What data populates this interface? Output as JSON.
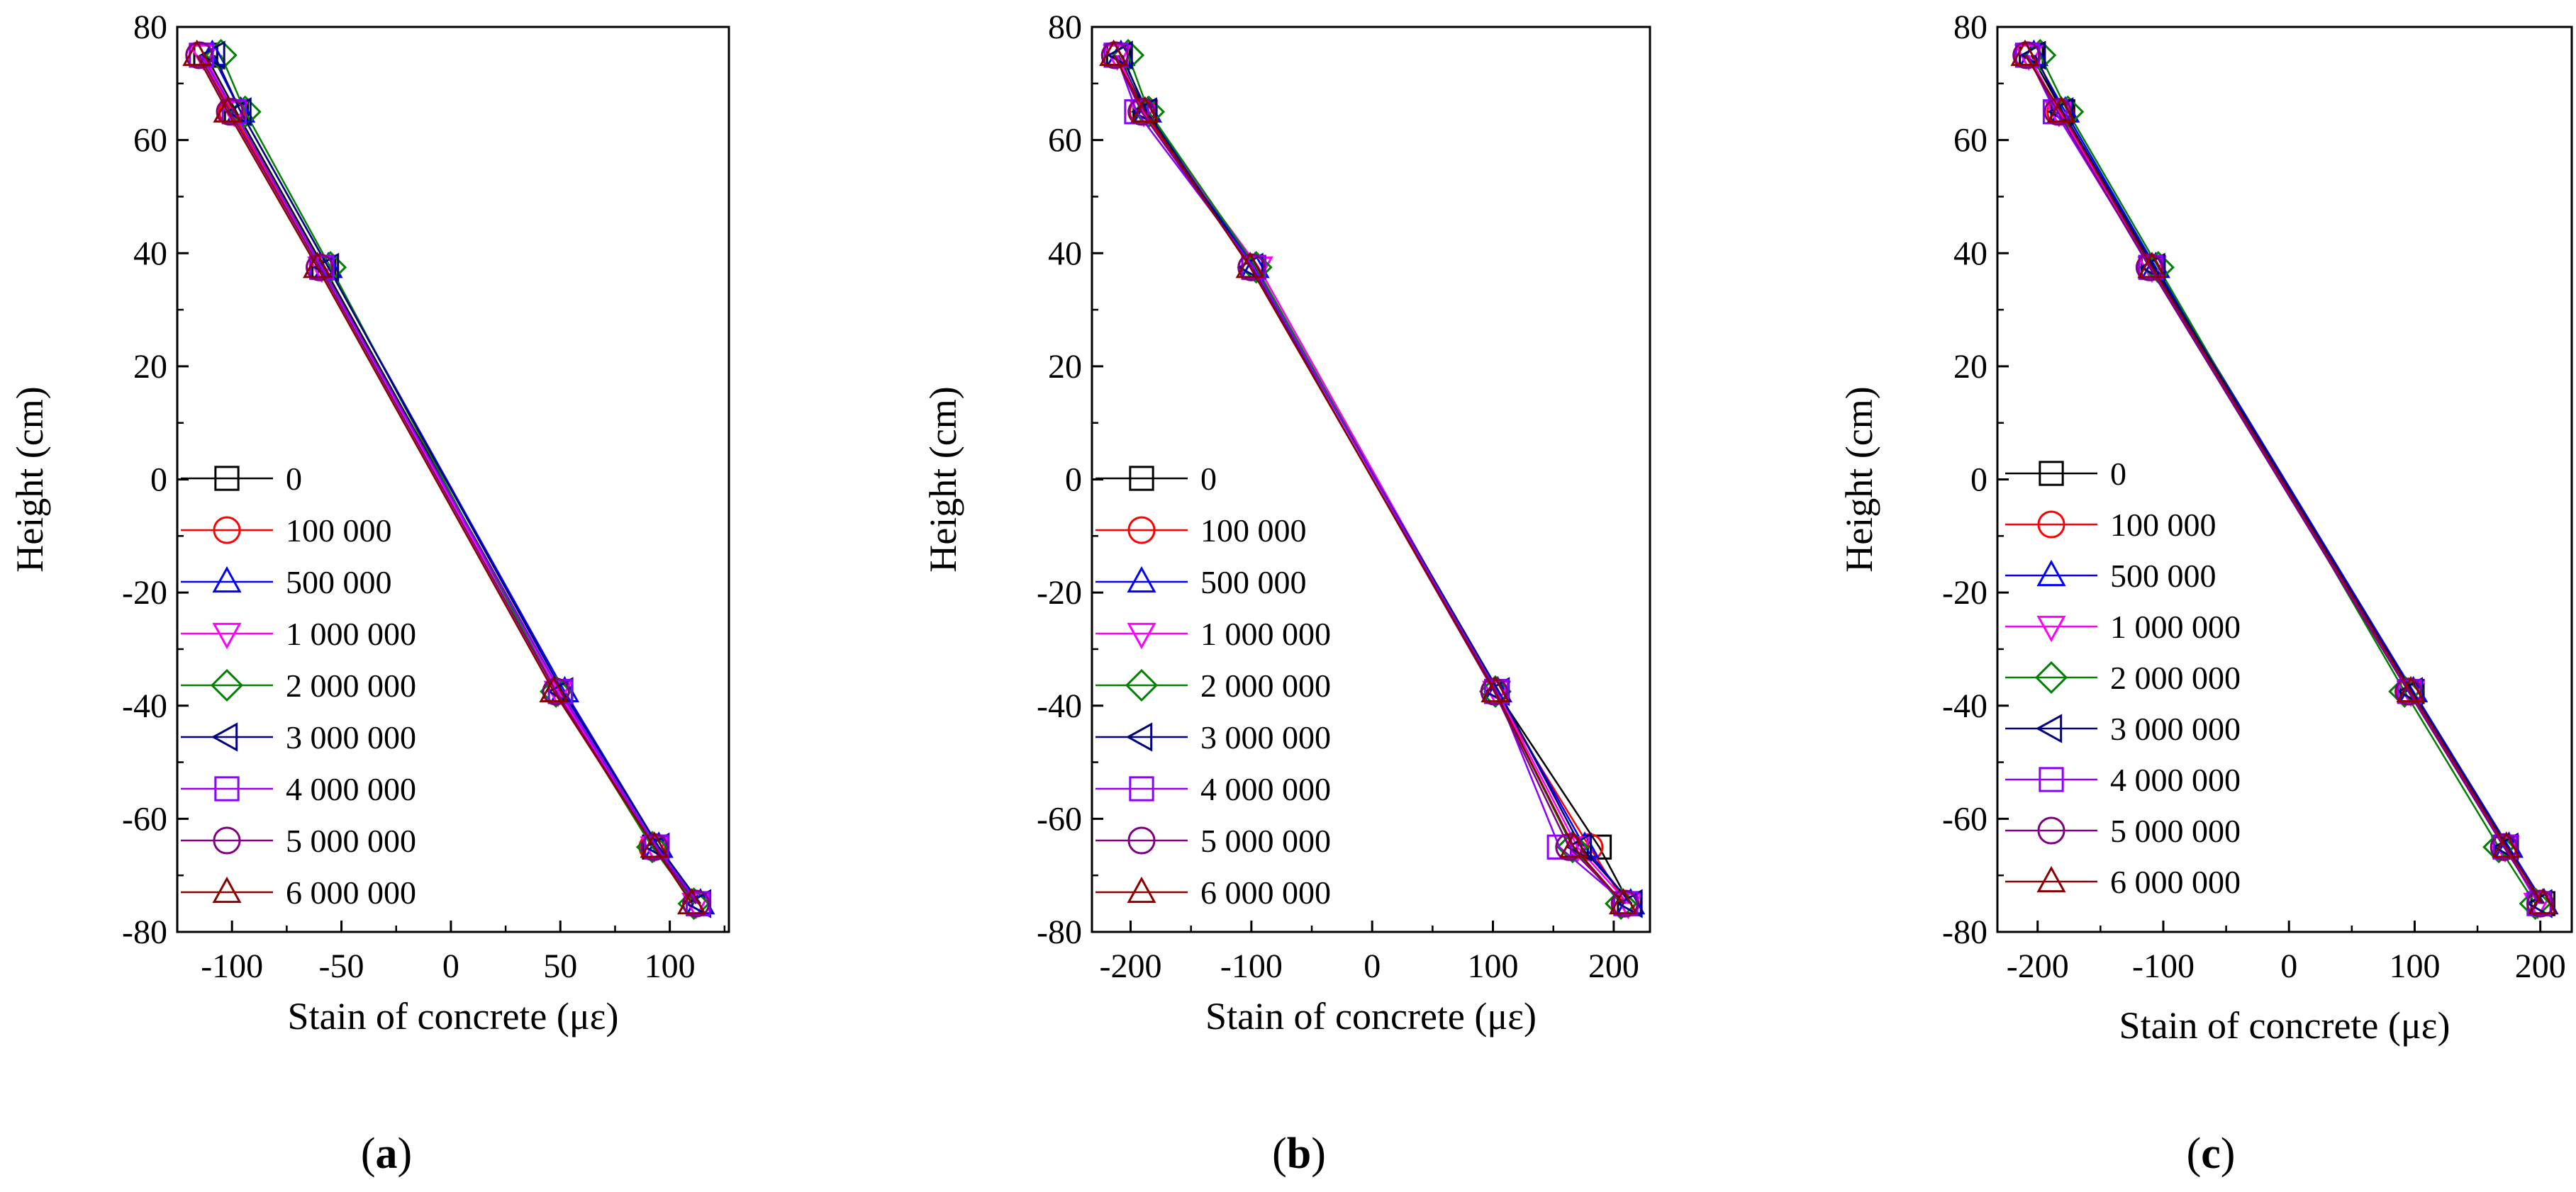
{
  "figure": {
    "panel_labels": [
      "a",
      "b",
      "c"
    ],
    "panel_label_format": "(X)"
  },
  "legend": {
    "entries": [
      {
        "name": "0",
        "color": "#000000",
        "marker": "square"
      },
      {
        "name": "100 000",
        "color": "#ff0000",
        "marker": "circle"
      },
      {
        "name": "500 000",
        "color": "#0000ff",
        "marker": "triangle-up"
      },
      {
        "name": "1 000 000",
        "color": "#ff00ff",
        "marker": "triangle-down"
      },
      {
        "name": "2 000 000",
        "color": "#008000",
        "marker": "diamond"
      },
      {
        "name": "3 000 000",
        "color": "#000080",
        "marker": "triangle-left"
      },
      {
        "name": "4 000 000",
        "color": "#8b00ff",
        "marker": "square"
      },
      {
        "name": "5 000 000",
        "color": "#800080",
        "marker": "circle"
      },
      {
        "name": "6 000 000",
        "color": "#8b0000",
        "marker": "triangle-up"
      }
    ]
  },
  "chart_data": [
    {
      "panel": "a",
      "type": "line",
      "xlabel": "Stain of concrete  (με)",
      "ylabel": "Height  (cm)",
      "xlim": [
        -125,
        127
      ],
      "ylim": [
        -80,
        80
      ],
      "xticks": [
        -100,
        -50,
        0,
        50,
        100
      ],
      "yticks": [
        -80,
        -60,
        -40,
        -20,
        0,
        20,
        40,
        60,
        80
      ],
      "heights": [
        75,
        65,
        37.5,
        -37.5,
        -65,
        -75
      ],
      "series": [
        {
          "name": "0",
          "x": [
            -112,
            -98,
            -58,
            50,
            93,
            113
          ]
        },
        {
          "name": "100 000",
          "x": [
            -115,
            -100,
            -60,
            48,
            92,
            112
          ]
        },
        {
          "name": "500 000",
          "x": [
            -109,
            -96,
            -56,
            52,
            95,
            114
          ]
        },
        {
          "name": "1 000 000",
          "x": [
            -113,
            -99,
            -59,
            49,
            93,
            112
          ]
        },
        {
          "name": "2 000 000",
          "x": [
            -105,
            -94,
            -55,
            48,
            92,
            111
          ]
        },
        {
          "name": "3 000 000",
          "x": [
            -108,
            -96,
            -56,
            51,
            95,
            114
          ]
        },
        {
          "name": "4 000 000",
          "x": [
            -114,
            -99,
            -59,
            50,
            94,
            113
          ]
        },
        {
          "name": "5 000 000",
          "x": [
            -115,
            -101,
            -60,
            48,
            93,
            112
          ]
        },
        {
          "name": "6 000 000",
          "x": [
            -116,
            -102,
            -61,
            47,
            93,
            110
          ]
        }
      ]
    },
    {
      "panel": "b",
      "type": "line",
      "xlabel": "Stain of concrete  (με)",
      "ylabel": "Height  (cm)",
      "xlim": [
        -232,
        230
      ],
      "ylim": [
        -80,
        80
      ],
      "xticks": [
        -200,
        -100,
        0,
        100,
        200
      ],
      "yticks": [
        -80,
        -60,
        -40,
        -20,
        0,
        20,
        40,
        60,
        80
      ],
      "heights": [
        75,
        65,
        37.5,
        -37.5,
        -65,
        -75
      ],
      "series": [
        {
          "name": "0",
          "x": [
            -210,
            -188,
            -98,
            103,
            188,
            213
          ]
        },
        {
          "name": "100 000",
          "x": [
            -213,
            -190,
            -100,
            101,
            180,
            210
          ]
        },
        {
          "name": "500 000",
          "x": [
            -208,
            -186,
            -97,
            104,
            176,
            214
          ]
        },
        {
          "name": "1 000 000",
          "x": [
            -211,
            -189,
            -94,
            103,
            170,
            212
          ]
        },
        {
          "name": "2 000 000",
          "x": [
            -202,
            -185,
            -96,
            102,
            166,
            206
          ]
        },
        {
          "name": "3 000 000",
          "x": [
            -207,
            -187,
            -99,
            105,
            173,
            215
          ]
        },
        {
          "name": "4 000 000",
          "x": [
            -212,
            -195,
            -98,
            103,
            155,
            210
          ]
        },
        {
          "name": "5 000 000",
          "x": [
            -213,
            -191,
            -100,
            101,
            163,
            209
          ]
        },
        {
          "name": "6 000 000",
          "x": [
            -214,
            -188,
            -101,
            102,
            167,
            208
          ]
        }
      ]
    },
    {
      "panel": "c",
      "type": "line",
      "xlabel": "Stain of concrete  (με)",
      "ylabel": "Height  (cm)",
      "xlim": [
        -232,
        225
      ],
      "ylim": [
        -80,
        80
      ],
      "xticks": [
        -200,
        -100,
        0,
        100,
        200
      ],
      "yticks": [
        -80,
        -60,
        -40,
        -20,
        0,
        20,
        40,
        60,
        80
      ],
      "heights": [
        75,
        65,
        37.5,
        -37.5,
        -65,
        -75
      ],
      "series": [
        {
          "name": "0",
          "x": [
            -205,
            -180,
            -108,
            98,
            173,
            202
          ]
        },
        {
          "name": "100 000",
          "x": [
            -208,
            -182,
            -110,
            96,
            171,
            200
          ]
        },
        {
          "name": "500 000",
          "x": [
            -203,
            -178,
            -106,
            99,
            175,
            203
          ]
        },
        {
          "name": "1 000 000",
          "x": [
            -207,
            -183,
            -109,
            97,
            172,
            198
          ]
        },
        {
          "name": "2 000 000",
          "x": [
            -198,
            -176,
            -104,
            92,
            167,
            196
          ]
        },
        {
          "name": "3 000 000",
          "x": [
            -202,
            -180,
            -107,
            98,
            174,
            201
          ]
        },
        {
          "name": "4 000 000",
          "x": [
            -208,
            -186,
            -110,
            96,
            172,
            199
          ]
        },
        {
          "name": "5 000 000",
          "x": [
            -209,
            -184,
            -111,
            95,
            171,
            200
          ]
        },
        {
          "name": "6 000 000",
          "x": [
            -210,
            -181,
            -109,
            97,
            173,
            202
          ]
        }
      ]
    }
  ]
}
